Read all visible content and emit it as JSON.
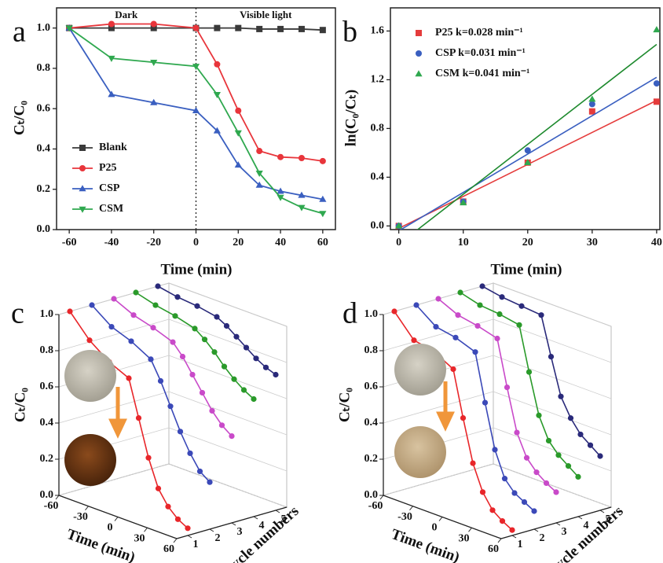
{
  "chart_data": [
    {
      "type": "line",
      "panel": "a",
      "x_label": "Time (min)",
      "y_label": "Cₜ/C₀",
      "annotations": [
        "Dark",
        "Visible light"
      ],
      "divider_x": 0,
      "x": [
        -60,
        -40,
        -20,
        0,
        10,
        20,
        30,
        40,
        50,
        60
      ],
      "xlim": [
        -66,
        66
      ],
      "xticks": [
        -60,
        -40,
        -20,
        0,
        20,
        40,
        60
      ],
      "ylim": [
        0,
        1.1
      ],
      "yticks": [
        {
          "value": 0,
          "label": "0.0"
        },
        0.2,
        0.4,
        0.6,
        0.8,
        {
          "value": 1,
          "label": "1.0"
        }
      ],
      "legend": "lower left",
      "series": [
        {
          "name": "Blank",
          "color": "#3a3a3a",
          "marker": "square",
          "values": [
            1,
            1,
            1,
            1,
            1,
            1,
            0.995,
            0.995,
            0.995,
            0.99
          ]
        },
        {
          "name": "P25",
          "color": "#e8353b",
          "marker": "circle",
          "values": [
            1,
            1.02,
            1.02,
            1,
            0.82,
            0.59,
            0.39,
            0.36,
            0.355,
            0.34
          ]
        },
        {
          "name": "CSP",
          "color": "#3a5fc0",
          "marker": "triangle-up",
          "values": [
            1,
            0.67,
            0.63,
            0.59,
            0.49,
            0.32,
            0.22,
            0.19,
            0.17,
            0.15
          ]
        },
        {
          "name": "CSM",
          "color": "#2fa84f",
          "marker": "triangle-down",
          "values": [
            1,
            0.85,
            0.83,
            0.81,
            0.67,
            0.48,
            0.28,
            0.16,
            0.11,
            0.08
          ]
        }
      ]
    },
    {
      "type": "scatter",
      "panel": "b",
      "x_label": "Time (min)",
      "y_label": "ln(C₀/Cₜ)",
      "x": [
        0,
        10,
        20,
        30,
        40
      ],
      "fit_x": [
        0,
        40
      ],
      "xlim": [
        -1.3,
        40.5
      ],
      "xticks": [
        0,
        10,
        20,
        30,
        40
      ],
      "ylim": [
        -0.03,
        1.79
      ],
      "yticks": [
        {
          "value": 0,
          "label": "0.0"
        },
        0.4,
        0.8,
        1.2,
        1.6
      ],
      "legend": "upper left",
      "series": [
        {
          "name": "P25 k=0.028 min⁻¹",
          "color": "#e53c3c",
          "marker": "square",
          "values": [
            0,
            0.2,
            0.52,
            0.94,
            1.02
          ],
          "fit": [
            -0.02,
            1.03
          ]
        },
        {
          "name": "CSP k=0.031 min⁻¹",
          "color": "#3a5fc0",
          "marker": "circle",
          "values": [
            0,
            0.2,
            0.62,
            1.0,
            1.17
          ],
          "fit": [
            -0.04,
            1.22
          ]
        },
        {
          "name": "CSM k=0.041 min⁻¹",
          "color": "#2fa84f",
          "fit_color": "#1e8a2e",
          "marker": "triangle-up",
          "values": [
            0,
            0.19,
            0.52,
            1.04,
            1.61
          ],
          "fit": [
            -0.15,
            1.49
          ]
        }
      ]
    },
    {
      "type": "line3d",
      "panel": "c",
      "x_label": "Time (min)",
      "y_label": "Cycle numbers",
      "z_label": "Cₜ/C₀",
      "x": [
        -60,
        -40,
        -20,
        0,
        10,
        20,
        30,
        40,
        50,
        60
      ],
      "cycles": [
        1,
        2,
        3,
        4,
        5
      ],
      "xlim": [
        -60,
        60
      ],
      "xticks": [
        -60,
        -30,
        0,
        30,
        60
      ],
      "ylim": [
        0.5,
        5.5
      ],
      "zlim": [
        0,
        1
      ],
      "zticks": [
        {
          "value": 0,
          "label": "0.0"
        },
        0.2,
        0.4,
        0.6,
        0.8,
        {
          "value": 1,
          "label": "1.0"
        }
      ],
      "series": [
        {
          "color": "#e8262a",
          "values": [
            1.0,
            0.88,
            0.8,
            0.75,
            0.55,
            0.35,
            0.2,
            0.12,
            0.07,
            0.04
          ]
        },
        {
          "color": "#3b49b8",
          "values": [
            1.0,
            0.92,
            0.88,
            0.82,
            0.72,
            0.6,
            0.48,
            0.38,
            0.3,
            0.26
          ]
        },
        {
          "color": "#c94ac9",
          "values": [
            1.0,
            0.95,
            0.92,
            0.88,
            0.82,
            0.74,
            0.66,
            0.58,
            0.52,
            0.48
          ]
        },
        {
          "color": "#2a9a2a",
          "values": [
            1.0,
            0.97,
            0.95,
            0.92,
            0.88,
            0.83,
            0.77,
            0.72,
            0.68,
            0.65
          ]
        },
        {
          "color": "#2a2a7a",
          "values": [
            1.0,
            0.98,
            0.97,
            0.95,
            0.92,
            0.88,
            0.84,
            0.8,
            0.77,
            0.75
          ]
        }
      ]
    },
    {
      "type": "line3d",
      "panel": "d",
      "x_label": "Time (min)",
      "y_label": "Cycle numbers",
      "z_label": "Cₜ/C₀",
      "x": [
        -60,
        -40,
        -20,
        0,
        10,
        20,
        30,
        40,
        50,
        60
      ],
      "cycles": [
        1,
        2,
        3,
        4,
        5
      ],
      "xlim": [
        -60,
        60
      ],
      "xticks": [
        -60,
        -30,
        0,
        30,
        60
      ],
      "ylim": [
        0.5,
        5.5
      ],
      "zlim": [
        0,
        1
      ],
      "zticks": [
        {
          "value": 0,
          "label": "0.0"
        },
        0.2,
        0.4,
        0.6,
        0.8,
        {
          "value": 1,
          "label": "1.0"
        }
      ],
      "series": [
        {
          "color": "#e8262a",
          "values": [
            1.0,
            0.88,
            0.86,
            0.8,
            0.55,
            0.32,
            0.18,
            0.1,
            0.06,
            0.03
          ]
        },
        {
          "color": "#3b49b8",
          "values": [
            1.0,
            0.92,
            0.9,
            0.86,
            0.6,
            0.36,
            0.22,
            0.16,
            0.13,
            0.1
          ]
        },
        {
          "color": "#c94ac9",
          "values": [
            1.0,
            0.95,
            0.93,
            0.9,
            0.65,
            0.42,
            0.3,
            0.24,
            0.2,
            0.17
          ]
        },
        {
          "color": "#2a9a2a",
          "values": [
            1.0,
            0.97,
            0.96,
            0.94,
            0.7,
            0.48,
            0.36,
            0.3,
            0.26,
            0.22
          ]
        },
        {
          "color": "#2a2a7a",
          "values": [
            1.0,
            0.98,
            0.97,
            0.96,
            0.75,
            0.55,
            0.45,
            0.38,
            0.34,
            0.3
          ]
        }
      ]
    }
  ]
}
